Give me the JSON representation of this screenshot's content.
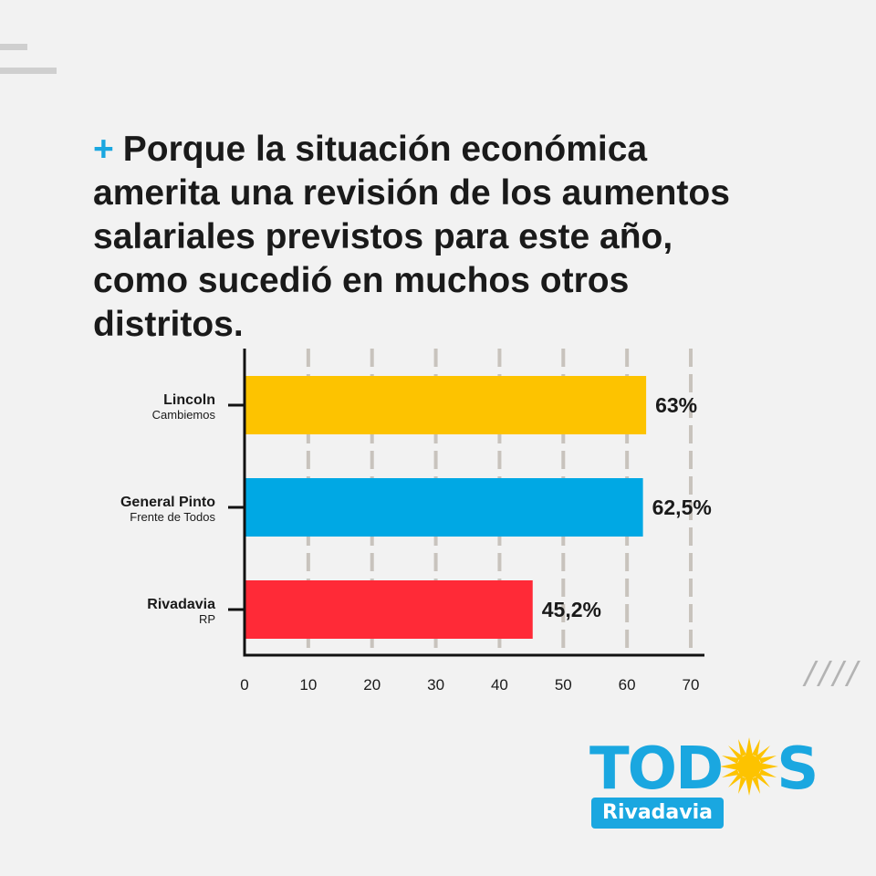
{
  "headline": {
    "bullet": "+",
    "text": "Porque la situación económica amerita una revisión de los aumentos salariales previstos para este año, como sucedió en muchos otros distritos."
  },
  "colors": {
    "accent": "#1aa7e0",
    "text": "#1a1a1a",
    "background": "#f2f2f2",
    "grid": "#c8c3bd"
  },
  "chart_data": {
    "type": "bar",
    "orientation": "horizontal",
    "categories": [
      {
        "name": "Lincoln",
        "sub": "Cambiemos"
      },
      {
        "name": "General Pinto",
        "sub": "Frente de Todos"
      },
      {
        "name": "Rivadavia",
        "sub": "RP"
      }
    ],
    "values": [
      63,
      62.5,
      45.2
    ],
    "value_labels": [
      "63%",
      "62,5%",
      "45,2%"
    ],
    "bar_colors": [
      "#fdc300",
      "#00a8e4",
      "#ff2a37"
    ],
    "xticks": [
      "0",
      "10",
      "20",
      "30",
      "40",
      "50",
      "60",
      "70"
    ],
    "xlim": [
      0,
      70
    ],
    "grid": "vertical dashed"
  },
  "logo": {
    "word_left": "TOD",
    "word_right": "S",
    "sub": "Rivadavia",
    "sun_color": "#fdc300",
    "icon": "sun-icon"
  }
}
